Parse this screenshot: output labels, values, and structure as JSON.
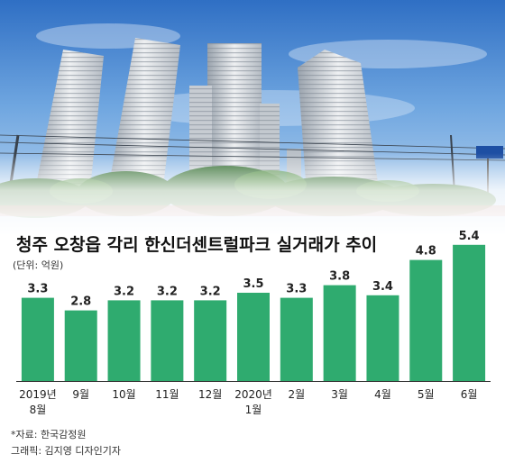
{
  "title": "청주 오창읍 각리 한신더센트럴파크 실거래가 추이",
  "unit_note": "(단위: 억원)",
  "source": "*자료: 한국감정원",
  "credit": "그래픽: 김지영 디자인기자",
  "colors": {
    "bar": "#2fab6f",
    "value_text": "#222222",
    "axis_text": "#222222",
    "baseline": "#333333"
  },
  "chart_data": {
    "type": "bar",
    "title": "청주 오창읍 각리 한신더센트럴파크 실거래가 추이",
    "xlabel": "",
    "ylabel": "",
    "unit": "억원",
    "categories": [
      [
        "2019년",
        "8월"
      ],
      [
        "9월"
      ],
      [
        "10월"
      ],
      [
        "11월"
      ],
      [
        "12월"
      ],
      [
        "2020년",
        "1월"
      ],
      [
        "2월"
      ],
      [
        "3월"
      ],
      [
        "4월"
      ],
      [
        "5월"
      ],
      [
        "6월"
      ]
    ],
    "values": [
      3.3,
      2.8,
      3.2,
      3.2,
      3.2,
      3.5,
      3.3,
      3.8,
      3.4,
      4.8,
      5.4
    ],
    "value_labels": [
      "3.3",
      "2.8",
      "3.2",
      "3.2",
      "3.2",
      "3.5",
      "3.3",
      "3.8",
      "3.4",
      "4.8",
      "5.4"
    ],
    "ylim": [
      0,
      5.4
    ],
    "grid": false,
    "legend": "none"
  }
}
